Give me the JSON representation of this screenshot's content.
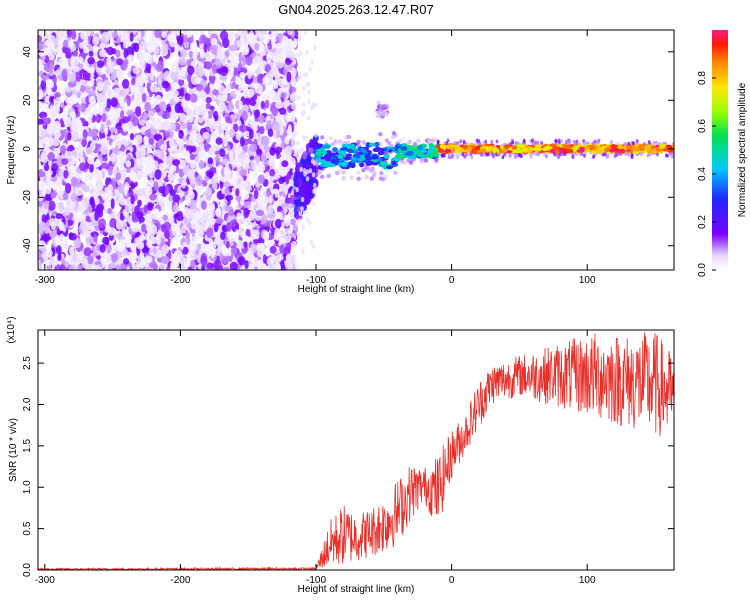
{
  "title": "GN04.2025.263.12.47.R07",
  "chart_data": [
    {
      "type": "heatmap",
      "xlabel": "Height of straight line (km)",
      "ylabel": "Frequency (Hz)",
      "xlim": [
        -305,
        164
      ],
      "ylim": [
        -50,
        49
      ],
      "x_ticks": [
        -300,
        -200,
        -100,
        0,
        100
      ],
      "x_tick_labels": [
        "-300",
        "-200",
        "-100",
        "0",
        "100"
      ],
      "y_ticks": [
        -40,
        -20,
        0,
        20,
        40
      ],
      "y_tick_labels": [
        "-40",
        "-20",
        "0",
        "20",
        "40"
      ],
      "colorbar": {
        "label": "Normalized spectral amplitude",
        "range": [
          0,
          1
        ],
        "ticks": [
          0.0,
          0.2,
          0.4,
          0.6,
          0.8
        ],
        "tick_labels": [
          "0.0",
          "0.2",
          "0.4",
          "0.6",
          "0.8"
        ]
      },
      "regions": [
        {
          "x_range": [
            -305,
            -115
          ],
          "f_range": [
            -50,
            49
          ],
          "amplitude": [
            0.02,
            0.12
          ],
          "pattern": "broadband noise"
        },
        {
          "x_range": [
            -115,
            -100
          ],
          "f_center_range": [
            -20,
            -5
          ],
          "amplitude": [
            0.1,
            0.3
          ],
          "pattern": "transition"
        },
        {
          "x_range": [
            -100,
            -40
          ],
          "f_center": -3,
          "f_halfwidth": 6,
          "amplitude": [
            0.2,
            0.5
          ]
        },
        {
          "x_range": [
            -55,
            -48
          ],
          "f_center": 16,
          "f_halfwidth": 2,
          "amplitude": [
            0.05,
            0.12
          ]
        },
        {
          "x_range": [
            -40,
            -10
          ],
          "f_center": -1,
          "f_halfwidth": 3,
          "amplitude": [
            0.3,
            0.6
          ]
        },
        {
          "x_range": [
            -10,
            164
          ],
          "f_center": 0,
          "f_halfwidth": 1.5,
          "amplitude": [
            0.7,
            1.0
          ],
          "pattern": "narrow tone"
        }
      ]
    },
    {
      "type": "line",
      "xlabel": "Height of straight line (km)",
      "ylabel": "SNR (10 * v/v)",
      "y_multiplier": "(x10⁴)",
      "xlim": [
        -305,
        164
      ],
      "ylim": [
        0,
        2.9
      ],
      "x_ticks": [
        -300,
        -200,
        -100,
        0,
        100
      ],
      "x_tick_labels": [
        "-300",
        "-200",
        "-100",
        "0",
        "100"
      ],
      "y_ticks": [
        0,
        0.5,
        1.0,
        1.5,
        2.0,
        2.5
      ],
      "y_tick_labels": [
        "0.0",
        "0.5",
        "1.0",
        "1.5",
        "2.0",
        "2.5"
      ],
      "line_color": "#e8302b",
      "envelope": [
        {
          "x": -305,
          "low": 0.0,
          "high": 0.02
        },
        {
          "x": -100,
          "low": 0.0,
          "high": 0.03
        },
        {
          "x": -90,
          "low": 0.02,
          "high": 0.6
        },
        {
          "x": -80,
          "low": 0.05,
          "high": 0.8
        },
        {
          "x": -70,
          "low": 0.1,
          "high": 0.7
        },
        {
          "x": -60,
          "low": 0.15,
          "high": 0.75
        },
        {
          "x": -50,
          "low": 0.2,
          "high": 0.9
        },
        {
          "x": -40,
          "low": 0.3,
          "high": 1.1
        },
        {
          "x": -30,
          "low": 0.6,
          "high": 1.3
        },
        {
          "x": -20,
          "low": 0.8,
          "high": 1.25
        },
        {
          "x": -10,
          "low": 0.5,
          "high": 1.4
        },
        {
          "x": 0,
          "low": 1.1,
          "high": 1.7
        },
        {
          "x": 10,
          "low": 1.4,
          "high": 1.9
        },
        {
          "x": 20,
          "low": 1.7,
          "high": 2.3
        },
        {
          "x": 30,
          "low": 2.0,
          "high": 2.5
        },
        {
          "x": 50,
          "low": 2.1,
          "high": 2.6
        },
        {
          "x": 70,
          "low": 2.0,
          "high": 2.7
        },
        {
          "x": 90,
          "low": 1.9,
          "high": 2.8
        },
        {
          "x": 110,
          "low": 1.8,
          "high": 2.9
        },
        {
          "x": 130,
          "low": 1.7,
          "high": 2.85
        },
        {
          "x": 150,
          "low": 1.6,
          "high": 2.9
        },
        {
          "x": 164,
          "low": 1.6,
          "high": 2.6
        }
      ]
    }
  ]
}
